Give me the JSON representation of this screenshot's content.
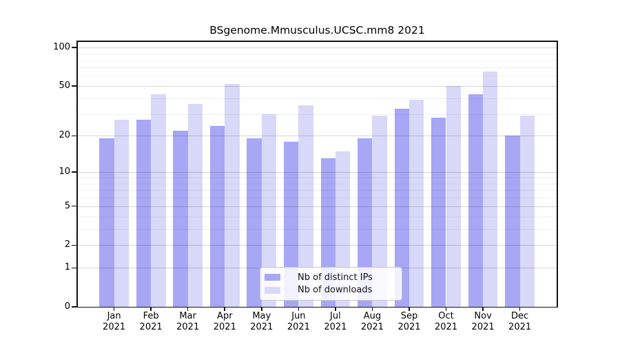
{
  "chart_data": {
    "type": "bar",
    "title": "BSgenome.Mmusculus.UCSC.mm8 2021",
    "categories": [
      "Jan\n2021",
      "Feb\n2021",
      "Mar\n2021",
      "Apr\n2021",
      "May\n2021",
      "Jun\n2021",
      "Jul\n2021",
      "Aug\n2021",
      "Sep\n2021",
      "Oct\n2021",
      "Nov\n2021",
      "Dec\n2021"
    ],
    "series": [
      {
        "name": "Nb of distinct IPs",
        "color": "#a7a7f5",
        "values": [
          19,
          27,
          22,
          24,
          19,
          18,
          13,
          19,
          33,
          28,
          43,
          20
        ]
      },
      {
        "name": "Nb of downloads",
        "color": "#d8d8f8",
        "values": [
          27,
          43,
          36,
          52,
          30,
          35,
          15,
          29,
          39,
          50,
          65,
          29
        ]
      }
    ],
    "yscale": "log1p",
    "ylim": [
      0,
      100
    ],
    "yticks": [
      0,
      1,
      2,
      5,
      10,
      20,
      50,
      100
    ],
    "yticks_minor": [
      3,
      4,
      6,
      7,
      8,
      9,
      30,
      40,
      60,
      70,
      80,
      90
    ],
    "xlabel": "",
    "ylabel": "",
    "grid": true,
    "legend_position": "bottom-center"
  },
  "colors": {
    "bar_distinct_ips": "#a7a7f5",
    "bar_downloads": "#d8d8f8",
    "grid_major": "rgba(0,0,0,0.16)",
    "grid_minor": "rgba(0,0,0,0.06)",
    "axis": "#111111",
    "background": "#ffffff"
  }
}
